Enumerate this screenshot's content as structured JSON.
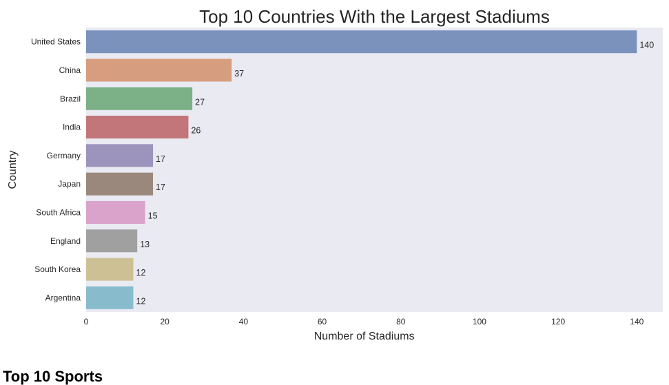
{
  "chart_data": {
    "type": "bar",
    "orientation": "horizontal",
    "title": "Top 10 Countries With the Largest Stadiums",
    "xlabel": "Number of Stadiums",
    "ylabel": "Country",
    "categories": [
      "United States",
      "China",
      "Brazil",
      "India",
      "Germany",
      "Japan",
      "South Africa",
      "England",
      "South Korea",
      "Argentina"
    ],
    "values": [
      140,
      37,
      27,
      26,
      17,
      17,
      15,
      13,
      12,
      12
    ],
    "value_labels": [
      "140",
      "37",
      "27",
      "26",
      "17",
      "17",
      "15",
      "13",
      "12",
      "12"
    ],
    "xticks": [
      0,
      20,
      40,
      60,
      80,
      100,
      120,
      140
    ],
    "xtick_labels": [
      "0",
      "20",
      "40",
      "60",
      "80",
      "100",
      "120",
      "140"
    ],
    "xlim": [
      0,
      146.6
    ],
    "grid": false,
    "background_color": "#eaeaf2",
    "bar_colors": [
      "#7a92bc",
      "#d69e7f",
      "#7cb087",
      "#c27679",
      "#9c94bd",
      "#9b887c",
      "#d9a3cc",
      "#a0a0a0",
      "#cdc095",
      "#88bccd"
    ]
  },
  "below_chart": {
    "section_heading": "Top 10 Sports"
  }
}
